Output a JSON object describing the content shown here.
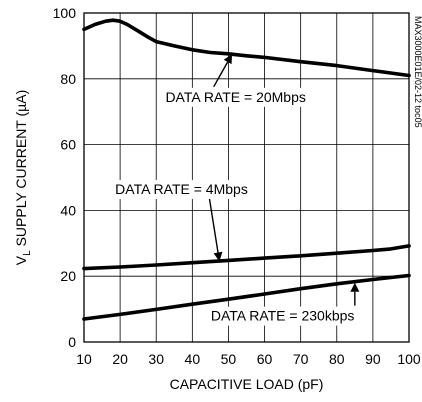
{
  "chart_data": {
    "type": "line",
    "xlabel": "CAPACITIVE LOAD (pF)",
    "ylabel_main": "V",
    "ylabel_sub": "L",
    "ylabel_rest": " SUPPLY CURRENT (µA)",
    "xlim": [
      10,
      100
    ],
    "ylim": [
      0,
      100
    ],
    "xticks": [
      10,
      20,
      30,
      40,
      50,
      60,
      70,
      80,
      90,
      100
    ],
    "yticks": [
      0,
      20,
      40,
      60,
      80,
      100
    ],
    "grid": true,
    "side_note": "MAX3000E01E/02-12 toc05",
    "series": [
      {
        "name": "DATA RATE = 20Mbps",
        "x": [
          10,
          13,
          16,
          18,
          20,
          22,
          25,
          28,
          30,
          35,
          40,
          45,
          50,
          55,
          60,
          70,
          80,
          90,
          100
        ],
        "y": [
          95,
          96.5,
          97.5,
          97.8,
          97.5,
          96.5,
          94.5,
          92.5,
          91.3,
          90,
          88.8,
          88,
          87.6,
          87,
          86.5,
          85.2,
          84,
          82.5,
          81
        ]
      },
      {
        "name": "DATA RATE = 4Mbps",
        "x": [
          10,
          20,
          30,
          40,
          50,
          60,
          70,
          80,
          90,
          95,
          100
        ],
        "y": [
          22.3,
          22.8,
          23.4,
          24.1,
          24.8,
          25.5,
          26.2,
          27,
          27.8,
          28.3,
          29.2
        ]
      },
      {
        "name": "DATA RATE = 230kbps",
        "x": [
          10,
          20,
          30,
          40,
          50,
          60,
          70,
          80,
          90,
          100
        ],
        "y": [
          7,
          8.4,
          9.9,
          11.5,
          13,
          14.6,
          16.2,
          17.7,
          19,
          20.2
        ]
      }
    ],
    "annotations": [
      {
        "label": "DATA RATE = 20Mbps",
        "text_x": 52,
        "text_y": 73,
        "arrow_to_x": 51,
        "arrow_to_y": 87.5
      },
      {
        "label": "DATA RATE = 4Mbps",
        "text_x": 37,
        "text_y": 45,
        "arrow_to_x": 47.5,
        "arrow_to_y": 24.5
      },
      {
        "label": "DATA RATE = 230kbps",
        "text_x": 65,
        "text_y": 6.5,
        "arrow_to_x": 85,
        "arrow_to_y": 18
      }
    ]
  }
}
